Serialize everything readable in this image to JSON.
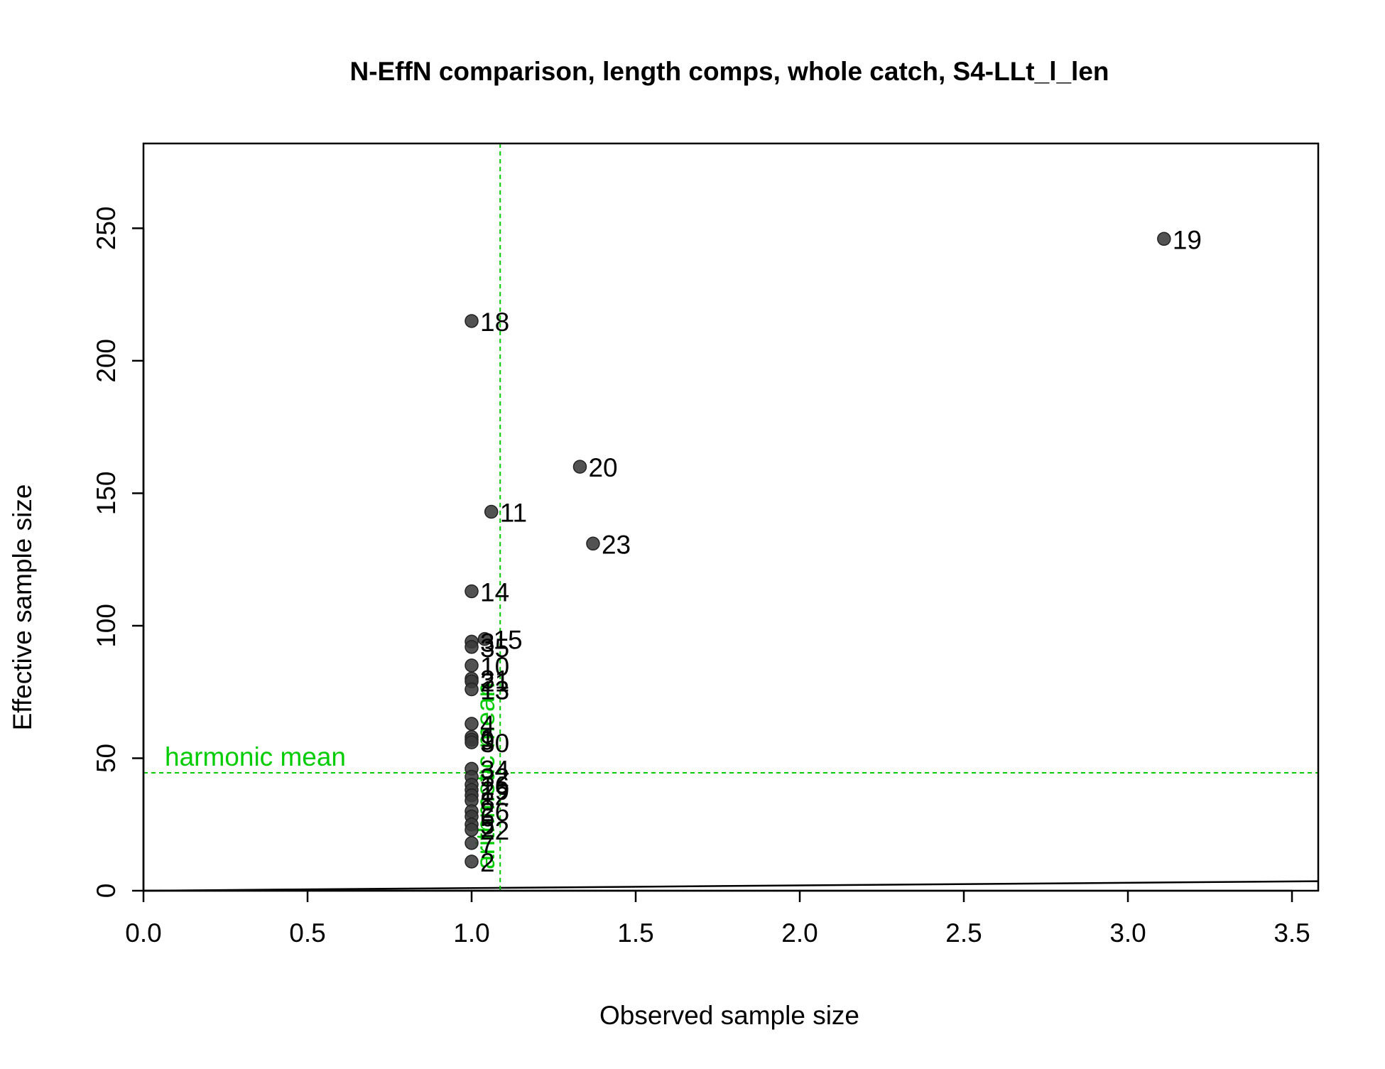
{
  "chart_data": {
    "type": "scatter",
    "title": "N-EffN comparison, length comps, whole catch, S4-LLt_l_len",
    "xlabel": "Observed sample size",
    "ylabel": "Effective sample size",
    "xlim": [
      0,
      3.58
    ],
    "ylim": [
      0,
      282
    ],
    "x_ticks": [
      0.0,
      0.5,
      1.0,
      1.5,
      2.0,
      2.5,
      3.0,
      3.5
    ],
    "x_tick_labels": [
      "0.0",
      "0.5",
      "1.0",
      "1.5",
      "2.0",
      "2.5",
      "3.0",
      "3.5"
    ],
    "y_ticks": [
      0,
      50,
      100,
      150,
      200,
      250
    ],
    "y_tick_labels": [
      "0",
      "50",
      "100",
      "150",
      "200",
      "250"
    ],
    "grid": false,
    "point_color": "#3a3a3a",
    "reference_color": "#00cc00",
    "points": [
      {
        "label": "19",
        "x": 3.11,
        "y": 246
      },
      {
        "label": "18",
        "x": 1.0,
        "y": 215
      },
      {
        "label": "20",
        "x": 1.33,
        "y": 160
      },
      {
        "label": "11",
        "x": 1.06,
        "y": 143
      },
      {
        "label": "23",
        "x": 1.37,
        "y": 131
      },
      {
        "label": "14",
        "x": 1.0,
        "y": 113
      },
      {
        "label": "15",
        "x": 1.04,
        "y": 95
      },
      {
        "label": "3",
        "x": 1.0,
        "y": 94
      },
      {
        "label": "35",
        "x": 1.0,
        "y": 92
      },
      {
        "label": "10",
        "x": 1.0,
        "y": 85
      },
      {
        "label": "31",
        "x": 1.0,
        "y": 80
      },
      {
        "label": "21",
        "x": 1.0,
        "y": 79
      },
      {
        "label": "13",
        "x": 1.0,
        "y": 76
      },
      {
        "label": "4",
        "x": 1.0,
        "y": 63
      },
      {
        "label": "1",
        "x": 1.0,
        "y": 58
      },
      {
        "label": "9",
        "x": 1.0,
        "y": 57
      },
      {
        "label": "30",
        "x": 1.0,
        "y": 56
      },
      {
        "label": "34",
        "x": 1.0,
        "y": 46
      },
      {
        "label": "32",
        "x": 1.0,
        "y": 43
      },
      {
        "label": "16",
        "x": 1.0,
        "y": 40
      },
      {
        "label": "29",
        "x": 1.0,
        "y": 38
      },
      {
        "label": "12",
        "x": 1.0,
        "y": 36
      },
      {
        "label": "8",
        "x": 1.0,
        "y": 34
      },
      {
        "label": "26",
        "x": 1.0,
        "y": 30
      },
      {
        "label": "6",
        "x": 1.0,
        "y": 28
      },
      {
        "label": "5",
        "x": 1.0,
        "y": 25
      },
      {
        "label": "22",
        "x": 1.0,
        "y": 23
      },
      {
        "label": "7",
        "x": 1.0,
        "y": 18
      },
      {
        "label": "2",
        "x": 1.0,
        "y": 11
      }
    ],
    "reference_lines": [
      {
        "orientation": "horizontal",
        "value": 44.5,
        "label": "harmonic mean",
        "style": "dashed"
      },
      {
        "orientation": "vertical",
        "value": 1.087,
        "label": "arithmetic mean",
        "style": "dashed"
      }
    ],
    "identity_line": {
      "from": [
        0,
        0
      ],
      "to": [
        3.58,
        3.58
      ],
      "style": "solid"
    }
  }
}
